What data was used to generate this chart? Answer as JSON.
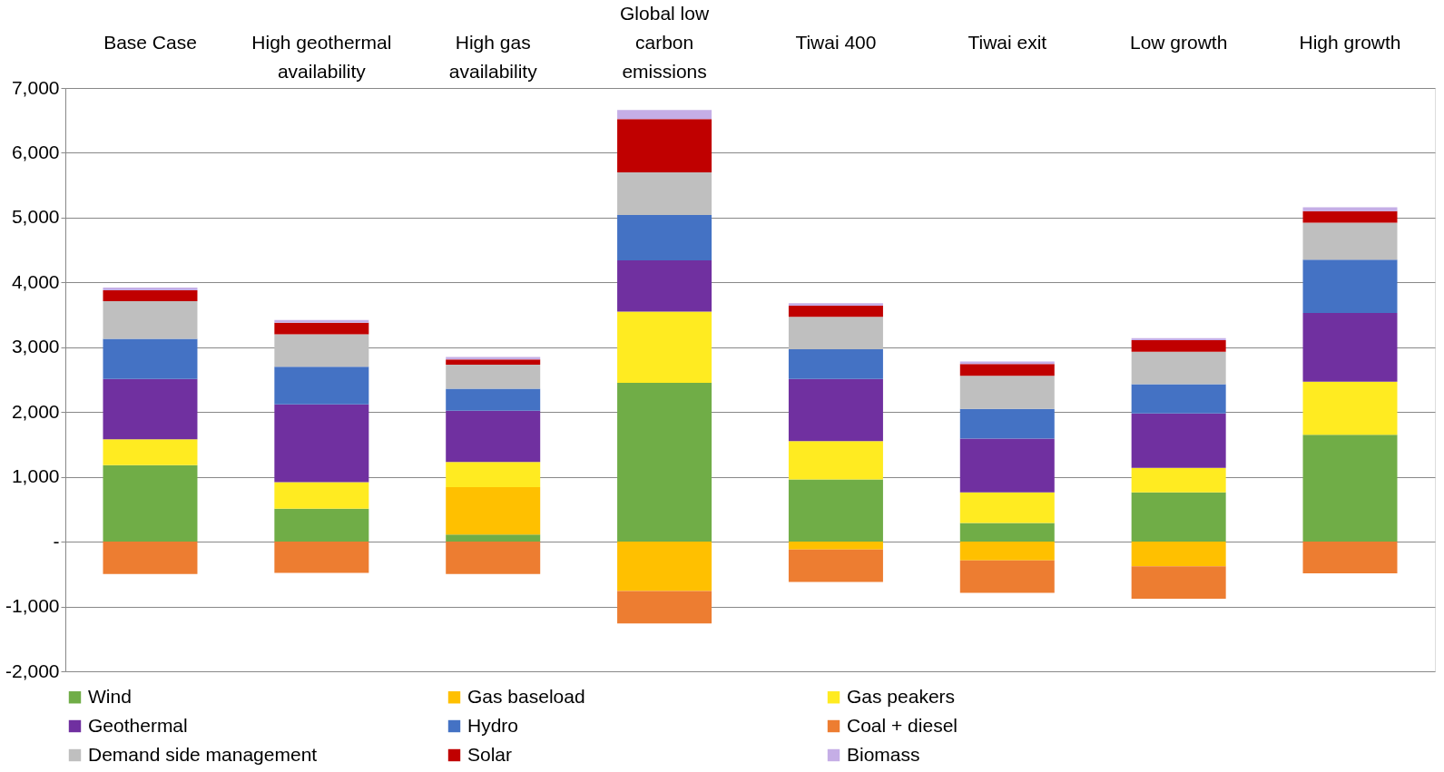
{
  "chart_data": {
    "type": "bar",
    "stacked": true,
    "categories": [
      "Base Case",
      "High geothermal availability",
      "High gas availability",
      "Global low carbon emissions",
      "Tiwai 400",
      "Tiwai exit",
      "Low growth",
      "High growth"
    ],
    "series": [
      {
        "name": "Wind",
        "color": "#70ad47",
        "values": [
          1180,
          510,
          110,
          2450,
          960,
          290,
          760,
          1650
        ]
      },
      {
        "name": "Gas baseload",
        "color": "#ffc000",
        "values": [
          0,
          0,
          730,
          -760,
          -120,
          -290,
          -380,
          0
        ]
      },
      {
        "name": "Gas peakers",
        "color": "#ffeb21",
        "values": [
          400,
          410,
          390,
          1100,
          590,
          470,
          380,
          820
        ]
      },
      {
        "name": "Geothermal",
        "color": "#7030a0",
        "values": [
          930,
          1200,
          790,
          790,
          960,
          830,
          840,
          1060
        ]
      },
      {
        "name": "Hydro",
        "color": "#4472c4",
        "values": [
          620,
          580,
          340,
          700,
          460,
          460,
          450,
          820
        ]
      },
      {
        "name": "Coal + diesel",
        "color": "#ed7d31",
        "values": [
          -500,
          -480,
          -500,
          -500,
          -500,
          -500,
          -500,
          -490
        ]
      },
      {
        "name": "Demand side management",
        "color": "#bfbfbf",
        "values": [
          580,
          500,
          370,
          660,
          500,
          510,
          500,
          570
        ]
      },
      {
        "name": "Solar",
        "color": "#c00000",
        "values": [
          170,
          180,
          80,
          820,
          170,
          180,
          180,
          180
        ]
      },
      {
        "name": "Biomass",
        "color": "#c5aee6",
        "values": [
          40,
          40,
          40,
          140,
          40,
          40,
          30,
          60
        ]
      }
    ],
    "ylim": [
      -2000,
      7000
    ],
    "yticks": [
      {
        "value": -2000,
        "label": "-2,000"
      },
      {
        "value": -1000,
        "label": "-1,000"
      },
      {
        "value": 0,
        "label": "-"
      },
      {
        "value": 1000,
        "label": "1,000"
      },
      {
        "value": 2000,
        "label": "2,000"
      },
      {
        "value": 3000,
        "label": "3,000"
      },
      {
        "value": 4000,
        "label": "4,000"
      },
      {
        "value": 5000,
        "label": "5,000"
      },
      {
        "value": 6000,
        "label": "6,000"
      },
      {
        "value": 7000,
        "label": "7,000"
      }
    ],
    "grid": "y",
    "legend": "bottom"
  }
}
